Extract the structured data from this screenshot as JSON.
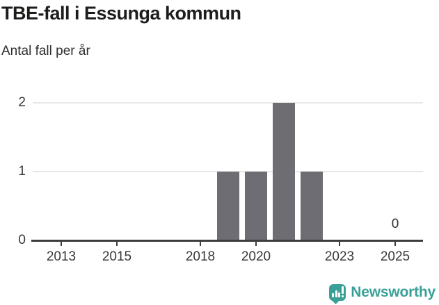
{
  "header": {
    "title": "TBE-fall i Essunga kommun",
    "subtitle": "Antal fall per år"
  },
  "chart_data": {
    "type": "bar",
    "title": "TBE-fall i Essunga kommun",
    "ylabel": "Antal fall per år",
    "xlabel": "",
    "categories": [
      2012,
      2013,
      2014,
      2015,
      2016,
      2017,
      2018,
      2019,
      2020,
      2021,
      2022,
      2023,
      2024,
      2025
    ],
    "values": [
      0,
      0,
      0,
      0,
      0,
      0,
      0,
      1,
      1,
      2,
      1,
      0,
      0,
      0
    ],
    "ylim": [
      0,
      2
    ],
    "yticks": [
      0,
      1,
      2
    ],
    "xticks": [
      2013,
      2015,
      2018,
      2020,
      2023,
      2025
    ],
    "grid": "horizontal",
    "legend": "none",
    "point_label": {
      "year": 2025,
      "text": "0"
    },
    "colors": {
      "bar": "#6e6d73",
      "grid": "#e8e8e8",
      "axis": "#3d3d3d",
      "tick_text": "#383838",
      "value_label": "#2e2e2e"
    }
  },
  "footer": {
    "brand": "Newsworthy",
    "brand_color": "#3aa096",
    "logo_icon": "bar-chart-speech-bubble-icon"
  }
}
